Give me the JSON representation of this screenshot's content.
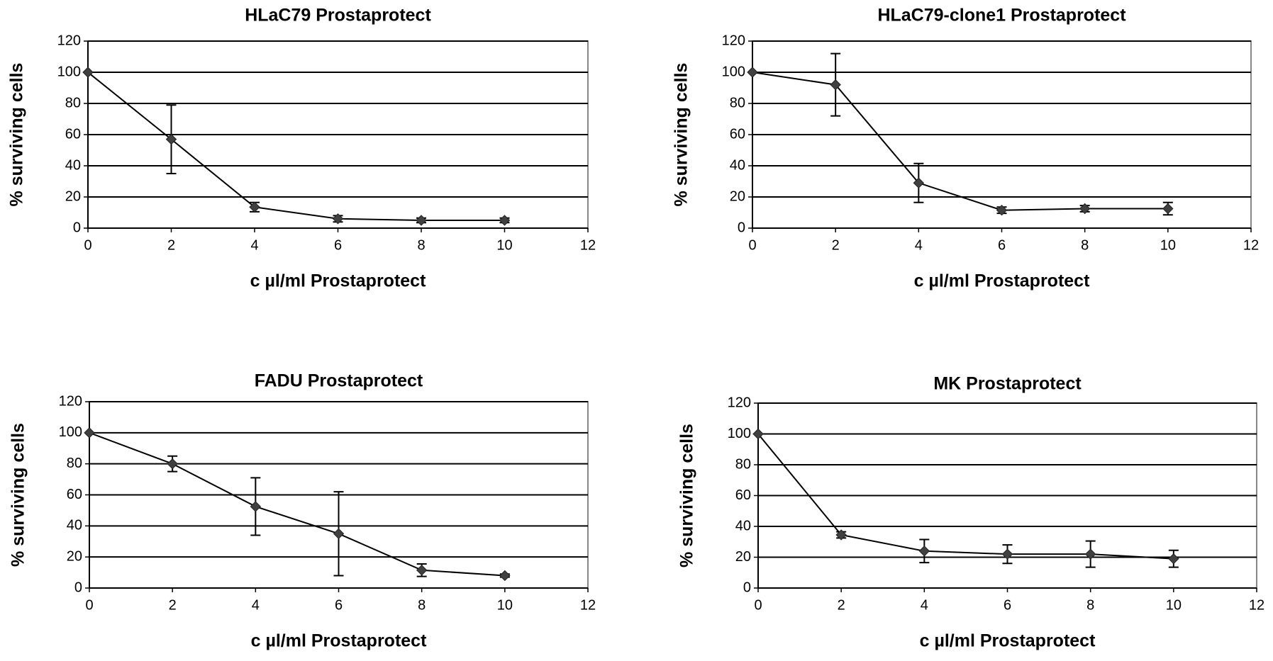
{
  "chart_data": [
    {
      "type": "line",
      "title": "HLaC79 Prostaprotect",
      "xlabel": "c µl/ml Prostaprotect",
      "ylabel": "% surviving cells",
      "x": [
        0,
        2,
        4,
        6,
        8,
        10
      ],
      "values": [
        100,
        57,
        13.5,
        6,
        5,
        5
      ],
      "errors": [
        0,
        22,
        3,
        2,
        1.5,
        1.5
      ],
      "color": "#404040",
      "xlim": [
        0,
        12
      ],
      "xticks": [
        0,
        2,
        4,
        6,
        8,
        10,
        12
      ],
      "ylim": [
        0,
        120
      ],
      "yticks": [
        0,
        20,
        40,
        60,
        80,
        100,
        120
      ],
      "grid": true
    },
    {
      "type": "line",
      "title": "HLaC79-clone1 Prostaprotect",
      "xlabel": "c µl/ml Prostaprotect",
      "ylabel": "% surviving cells",
      "x": [
        0,
        2,
        4,
        6,
        8,
        10
      ],
      "values": [
        100,
        92,
        29,
        11.5,
        12.5,
        12.5
      ],
      "errors": [
        0,
        20,
        12.5,
        2,
        2,
        4
      ],
      "color": "#404040",
      "xlim": [
        0,
        12
      ],
      "xticks": [
        0,
        2,
        4,
        6,
        8,
        10,
        12
      ],
      "ylim": [
        0,
        120
      ],
      "yticks": [
        0,
        20,
        40,
        60,
        80,
        100,
        120
      ],
      "grid": true
    },
    {
      "type": "line",
      "title": "FADU Prostaprotect",
      "xlabel": "c µl/ml Prostaprotect",
      "ylabel": "% surviving cells",
      "x": [
        0,
        2,
        4,
        6,
        8,
        10
      ],
      "values": [
        100,
        80,
        52.5,
        35,
        11.5,
        8
      ],
      "errors": [
        0,
        5,
        18.5,
        27,
        4,
        1
      ],
      "color": "#404040",
      "xlim": [
        0,
        12
      ],
      "xticks": [
        0,
        2,
        4,
        6,
        8,
        10,
        12
      ],
      "ylim": [
        0,
        120
      ],
      "yticks": [
        0,
        20,
        40,
        60,
        80,
        100,
        120
      ],
      "grid": true
    },
    {
      "type": "line",
      "title": "MK Prostaprotect",
      "xlabel": "c µl/ml Prostaprotect",
      "ylabel": "% surviving cells",
      "x": [
        0,
        2,
        4,
        6,
        8,
        10
      ],
      "values": [
        100,
        34.5,
        24,
        22,
        22,
        19
      ],
      "errors": [
        0,
        2,
        7.5,
        6,
        8.5,
        5.5
      ],
      "color": "#404040",
      "xlim": [
        0,
        12
      ],
      "xticks": [
        0,
        2,
        4,
        6,
        8,
        10,
        12
      ],
      "ylim": [
        0,
        120
      ],
      "yticks": [
        0,
        20,
        40,
        60,
        80,
        100,
        120
      ],
      "grid": true
    }
  ]
}
